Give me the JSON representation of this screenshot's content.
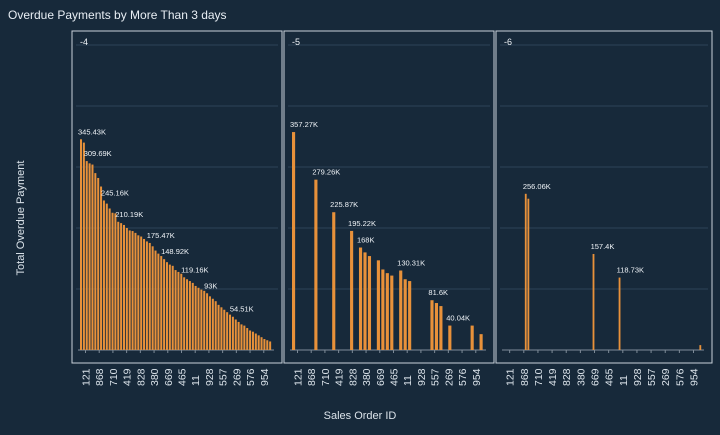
{
  "title": "Overdue Payments by More Than 3 days",
  "chart_data": {
    "type": "bar",
    "title": "Overdue Payments by More Than 3 days",
    "xlabel": "Sales Order ID",
    "ylabel": "Total Overdue Payment",
    "ylim": [
      0,
      500000
    ],
    "yticks": [
      0,
      100000,
      200000,
      300000,
      400000,
      500000
    ],
    "grid": true,
    "panels": [
      {
        "label": "-4",
        "x_tick_labels": [
          "121",
          "868",
          "710",
          "419",
          "828",
          "380",
          "669",
          "465",
          "11",
          "928",
          "557",
          "269",
          "576",
          "954"
        ],
        "values": [
          345430,
          340000,
          309690,
          306000,
          304000,
          290000,
          282000,
          268000,
          245160,
          240000,
          232000,
          225000,
          224000,
          210190,
          208000,
          205000,
          200000,
          196000,
          195000,
          192000,
          188000,
          186000,
          182000,
          178000,
          175470,
          170000,
          163000,
          158000,
          154000,
          148920,
          144000,
          140000,
          138000,
          131000,
          128000,
          125000,
          119160,
          116000,
          113000,
          110000,
          105000,
          102000,
          99000,
          97000,
          93000,
          88000,
          84000,
          80000,
          74000,
          70000,
          66000,
          62000,
          58000,
          54510,
          50000,
          46000,
          42000,
          40000,
          36000,
          32000,
          30000,
          27000,
          24000,
          21000,
          18000,
          16000,
          14000
        ],
        "labels": [
          {
            "text": "345.43K",
            "value": 345430
          },
          {
            "text": "309.69K",
            "value": 309690
          },
          {
            "text": "245.16K",
            "value": 245160
          },
          {
            "text": "210.19K",
            "value": 210190
          },
          {
            "text": "175.47K",
            "value": 175470
          },
          {
            "text": "148.92K",
            "value": 148920
          },
          {
            "text": "119.16K",
            "value": 119160
          },
          {
            "text": "93K",
            "value": 93000
          },
          {
            "text": "54.51K",
            "value": 54510
          }
        ]
      },
      {
        "label": "-5",
        "x_tick_labels": [
          "121",
          "868",
          "710",
          "419",
          "828",
          "380",
          "669",
          "465",
          "11",
          "928",
          "557",
          "269",
          "576",
          "954"
        ],
        "values": [
          357270,
          null,
          null,
          null,
          null,
          279260,
          null,
          null,
          null,
          225870,
          null,
          null,
          null,
          195220,
          null,
          168000,
          160000,
          154000,
          null,
          147000,
          132000,
          126000,
          122000,
          null,
          130310,
          116000,
          113000,
          null,
          null,
          null,
          null,
          81600,
          77000,
          72000,
          null,
          40040,
          null,
          null,
          null,
          null,
          40040,
          null,
          26000
        ],
        "labels": [
          {
            "text": "357.27K",
            "value": 357270
          },
          {
            "text": "279.26K",
            "value": 279260
          },
          {
            "text": "225.87K",
            "value": 225870
          },
          {
            "text": "195.22K",
            "value": 195220
          },
          {
            "text": "168K",
            "value": 168000
          },
          {
            "text": "130.31K",
            "value": 130310
          },
          {
            "text": "81.6K",
            "value": 81600
          },
          {
            "text": "40.04K",
            "value": 40040
          }
        ]
      },
      {
        "label": "-6",
        "x_tick_labels": [
          "121",
          "868",
          "710",
          "419",
          "828",
          "380",
          "669",
          "465",
          "11",
          "928",
          "557",
          "269",
          "576",
          "954"
        ],
        "values": [
          null,
          null,
          null,
          null,
          null,
          null,
          null,
          null,
          256060,
          248000,
          null,
          null,
          null,
          null,
          null,
          null,
          null,
          null,
          null,
          null,
          null,
          null,
          null,
          null,
          null,
          null,
          null,
          null,
          null,
          null,
          null,
          null,
          null,
          null,
          157400,
          null,
          null,
          null,
          null,
          null,
          null,
          null,
          null,
          null,
          118730,
          null,
          null,
          null,
          null,
          null,
          null,
          null,
          null,
          null,
          null,
          null,
          null,
          null,
          null,
          null,
          null,
          null,
          null,
          null,
          null,
          null,
          null,
          null,
          null,
          null,
          null,
          null,
          null,
          null,
          null,
          8000
        ],
        "labels": [
          {
            "text": "256.06K",
            "value": 256060
          },
          {
            "text": "157.4K",
            "value": 157400
          },
          {
            "text": "118.73K",
            "value": 118730
          }
        ]
      }
    ]
  }
}
